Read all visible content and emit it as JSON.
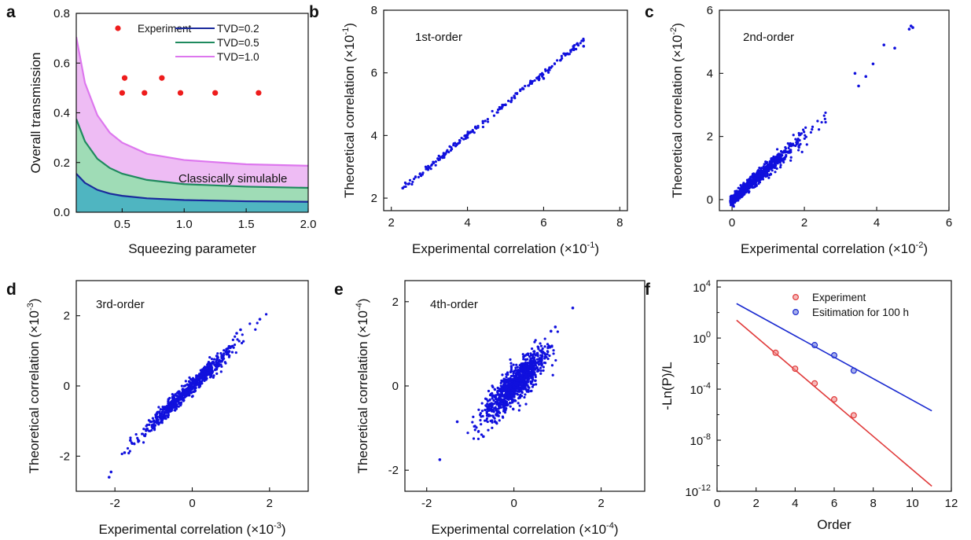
{
  "figure": {
    "panels": [
      "a",
      "b",
      "c",
      "d",
      "e",
      "f"
    ]
  },
  "chart_data": [
    {
      "id": "a",
      "type": "area",
      "xlabel": "Squeezing parameter",
      "ylabel": "Overall transmission",
      "xlim": [
        0.13,
        2.0
      ],
      "ylim": [
        0.0,
        0.8
      ],
      "xticks": [
        {
          "v": 0.5,
          "label": "0.5"
        },
        {
          "v": 1.0,
          "label": "1.0"
        },
        {
          "v": 1.5,
          "label": "1.5"
        },
        {
          "v": 2.0,
          "label": "2.0"
        }
      ],
      "yticks": [
        {
          "v": 0.0,
          "label": "0.0"
        },
        {
          "v": 0.2,
          "label": "0.2"
        },
        {
          "v": 0.4,
          "label": "0.4"
        },
        {
          "v": 0.6,
          "label": "0.6"
        },
        {
          "v": 0.8,
          "label": "0.8"
        }
      ],
      "annotation": "Classically simulable",
      "legend_position": "top-right",
      "legend": [
        {
          "label": "Experiment",
          "kind": "marker",
          "color": "#ee1c1c"
        },
        {
          "label": "TVD=0.2",
          "kind": "line",
          "color": "#1a2a9c"
        },
        {
          "label": "TVD=0.5",
          "kind": "line",
          "color": "#1f8a5e"
        },
        {
          "label": "TVD=1.0",
          "kind": "line",
          "color": "#dd77ee"
        }
      ],
      "series": [
        {
          "name": "TVD=0.2",
          "color": "#1a2a9c",
          "fill": "#4fb5c1",
          "points": [
            [
              0.13,
              0.155
            ],
            [
              0.2,
              0.118
            ],
            [
              0.3,
              0.09
            ],
            [
              0.4,
              0.075
            ],
            [
              0.5,
              0.066
            ],
            [
              0.7,
              0.056
            ],
            [
              1.0,
              0.049
            ],
            [
              1.5,
              0.044
            ],
            [
              2.0,
              0.042
            ]
          ]
        },
        {
          "name": "TVD=0.5",
          "color": "#1f8a5e",
          "fill": "#9fdcb6",
          "points": [
            [
              0.13,
              0.375
            ],
            [
              0.2,
              0.285
            ],
            [
              0.3,
              0.215
            ],
            [
              0.4,
              0.178
            ],
            [
              0.5,
              0.155
            ],
            [
              0.7,
              0.13
            ],
            [
              1.0,
              0.113
            ],
            [
              1.5,
              0.103
            ],
            [
              2.0,
              0.098
            ]
          ]
        },
        {
          "name": "TVD=1.0",
          "color": "#dd77ee",
          "fill": "#eebcf4",
          "points": [
            [
              0.13,
              0.705
            ],
            [
              0.2,
              0.52
            ],
            [
              0.3,
              0.39
            ],
            [
              0.4,
              0.32
            ],
            [
              0.5,
              0.28
            ],
            [
              0.7,
              0.235
            ],
            [
              1.0,
              0.21
            ],
            [
              1.5,
              0.193
            ],
            [
              2.0,
              0.187
            ]
          ]
        }
      ],
      "experiment": {
        "name": "Experiment",
        "color": "#ee1c1c",
        "points": [
          [
            0.5,
            0.48
          ],
          [
            0.52,
            0.54
          ],
          [
            0.68,
            0.48
          ],
          [
            0.82,
            0.54
          ],
          [
            0.97,
            0.48
          ],
          [
            1.25,
            0.48
          ],
          [
            1.6,
            0.48
          ]
        ]
      }
    },
    {
      "id": "b",
      "type": "scatter",
      "label": "1st-order",
      "xlabel": "Experimental correlation (×10",
      "xexp": "-1",
      "ylabel": "Theoretical  correlation (×10",
      "yexp": "-1",
      "xlim": [
        1.8,
        8.2
      ],
      "ylim": [
        1.6,
        8.0
      ],
      "xticks": [
        {
          "v": 2,
          "label": "2"
        },
        {
          "v": 4,
          "label": "4"
        },
        {
          "v": 6,
          "label": "6"
        },
        {
          "v": 8,
          "label": "8"
        }
      ],
      "yticks": [
        {
          "v": 2,
          "label": "2"
        },
        {
          "v": 4,
          "label": "4"
        },
        {
          "v": 6,
          "label": "6"
        },
        {
          "v": 8,
          "label": "8"
        }
      ],
      "color": "#1010dd",
      "trend": {
        "slope": 1.0,
        "intercept": 0.0
      },
      "range": [
        2.3,
        7.05
      ],
      "spread": 0.05,
      "count": 200,
      "points": [
        [
          2.3,
          2.32
        ],
        [
          2.45,
          2.45
        ],
        [
          3.0,
          2.98
        ],
        [
          4.0,
          4.02
        ],
        [
          5.0,
          4.98
        ],
        [
          6.0,
          5.82
        ],
        [
          6.6,
          6.6
        ],
        [
          7.05,
          6.85
        ]
      ]
    },
    {
      "id": "c",
      "type": "scatter",
      "label": "2nd-order",
      "xlabel": "Experimental correlation (×10",
      "xexp": "-2",
      "ylabel": "Theoretical correlation (×10",
      "yexp": "-2",
      "xlim": [
        -0.35,
        6.0
      ],
      "ylim": [
        -0.35,
        6.0
      ],
      "xticks": [
        {
          "v": 0,
          "label": "0"
        },
        {
          "v": 2,
          "label": "2"
        },
        {
          "v": 4,
          "label": "4"
        },
        {
          "v": 6,
          "label": "6"
        }
      ],
      "yticks": [
        {
          "v": 0,
          "label": "0"
        },
        {
          "v": 2,
          "label": "2"
        },
        {
          "v": 4,
          "label": "4"
        },
        {
          "v": 6,
          "label": "6"
        }
      ],
      "color": "#1010dd",
      "trend": {
        "slope": 1.0,
        "intercept": 0.0
      },
      "range": [
        -0.1,
        3.2
      ],
      "spread": 0.18,
      "count": 900,
      "points": [
        [
          3.5,
          3.6
        ],
        [
          3.7,
          3.9
        ],
        [
          3.9,
          4.3
        ],
        [
          4.2,
          4.9
        ],
        [
          4.5,
          4.8
        ],
        [
          4.9,
          5.4
        ],
        [
          4.95,
          5.5
        ],
        [
          5.0,
          5.45
        ],
        [
          3.4,
          4.0
        ]
      ]
    },
    {
      "id": "d",
      "type": "scatter",
      "label": "3rd-order",
      "xlabel": "Experimental correlation (×10",
      "xexp": "-3",
      "ylabel": "Theoretical correlation (×10",
      "yexp": "-3",
      "xlim": [
        -3.0,
        3.0
      ],
      "ylim": [
        -3.0,
        3.0
      ],
      "xticks": [
        {
          "v": -2,
          "label": "-2"
        },
        {
          "v": 0,
          "label": "0"
        },
        {
          "v": 2,
          "label": "2"
        }
      ],
      "yticks": [
        {
          "v": -2,
          "label": "-2"
        },
        {
          "v": 0,
          "label": "0"
        },
        {
          "v": 2,
          "label": "2"
        }
      ],
      "color": "#1010dd",
      "trend": {
        "slope": 1.05,
        "intercept": 0.0
      },
      "range": [
        -1.5,
        1.3
      ],
      "spread": 0.12,
      "count": 700,
      "points": [
        [
          -2.15,
          -2.6
        ],
        [
          -2.1,
          -2.45
        ],
        [
          -1.75,
          -1.9
        ],
        [
          -1.6,
          -1.55
        ],
        [
          1.75,
          1.9
        ],
        [
          1.25,
          1.6
        ],
        [
          1.15,
          1.5
        ]
      ]
    },
    {
      "id": "e",
      "type": "scatter",
      "label": "4th-order",
      "xlabel": "Experimental correlation (×10",
      "xexp": "-4",
      "ylabel": "Theoretical correlation (×10",
      "yexp": "-4",
      "xlim": [
        -2.5,
        3.0
      ],
      "ylim": [
        -2.5,
        2.5
      ],
      "xticks": [
        {
          "v": -2,
          "label": "-2"
        },
        {
          "v": 0,
          "label": "0"
        },
        {
          "v": 2,
          "label": "2"
        }
      ],
      "yticks": [
        {
          "v": -2,
          "label": "-2"
        },
        {
          "v": 0,
          "label": "0"
        },
        {
          "v": 2,
          "label": "2"
        }
      ],
      "color": "#1010dd",
      "trend": {
        "slope": 1.0,
        "intercept": 0.0
      },
      "range": [
        -0.75,
        0.8
      ],
      "spread": 0.22,
      "count": 1000,
      "points": [
        [
          -1.7,
          -1.75
        ],
        [
          -1.3,
          -0.85
        ],
        [
          1.35,
          1.85
        ],
        [
          0.95,
          1.4
        ],
        [
          0.85,
          1.3
        ],
        [
          -0.7,
          -1.2
        ]
      ]
    },
    {
      "id": "f",
      "type": "line",
      "xlabel": "Order",
      "ylabel": "-Ln(P)/L",
      "yscale": "log10",
      "xlim": [
        0,
        12
      ],
      "ylim_log10": [
        -12,
        4.5
      ],
      "xticks": [
        {
          "v": 0,
          "label": "0"
        },
        {
          "v": 2,
          "label": "2"
        },
        {
          "v": 4,
          "label": "4"
        },
        {
          "v": 6,
          "label": "6"
        },
        {
          "v": 8,
          "label": "8"
        },
        {
          "v": 10,
          "label": "10"
        },
        {
          "v": 12,
          "label": "12"
        }
      ],
      "yticks": [
        {
          "exp": -12
        },
        {
          "exp": -8
        },
        {
          "exp": -4
        },
        {
          "exp": 0
        },
        {
          "exp": 4
        }
      ],
      "legend_position": "top-right",
      "series": [
        {
          "name": "Experiment",
          "color": "#e03a3a",
          "marker_fill": "#f08a8a",
          "line_log10": [
            [
              1,
              1.4
            ],
            [
              11,
              -11.6
            ]
          ],
          "points_log10": [
            [
              3,
              -1.15
            ],
            [
              4,
              -2.4
            ],
            [
              5,
              -3.55
            ],
            [
              6,
              -4.8
            ],
            [
              7,
              -6.05
            ]
          ]
        },
        {
          "name": "Esitimation for 100 h",
          "color": "#1a2ad0",
          "marker_fill": "#6d7ae0",
          "line_log10": [
            [
              1,
              2.7
            ],
            [
              11,
              -5.7
            ]
          ],
          "points_log10": [
            [
              5,
              -0.55
            ],
            [
              6,
              -1.35
            ],
            [
              7,
              -2.55
            ]
          ]
        }
      ]
    }
  ]
}
